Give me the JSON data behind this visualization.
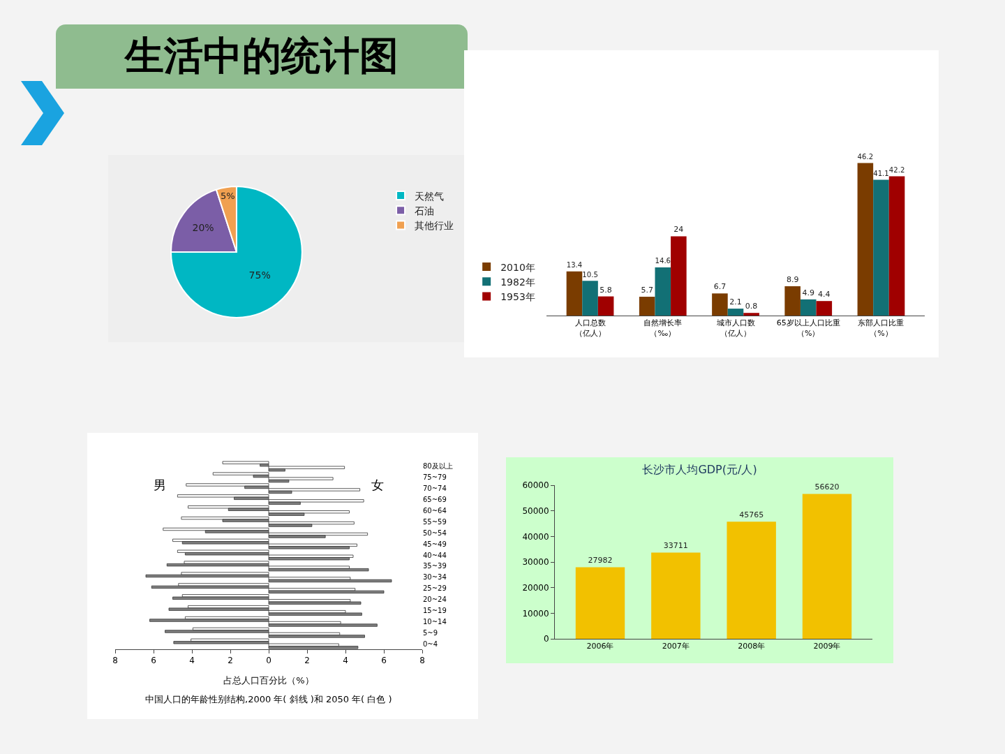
{
  "chart_data": [
    {
      "type": "pie",
      "title": "生活中的统计图",
      "categories": [
        "天然气",
        "石油",
        "其他行业"
      ],
      "values": [
        75,
        20,
        5
      ],
      "colors": [
        "#00b7c3",
        "#7b5ea7",
        "#f0a050"
      ],
      "value_labels": [
        "75%",
        "20%",
        "5%"
      ],
      "legend": "right"
    },
    {
      "type": "bar",
      "categories": [
        "人口总数（亿人）",
        "自然增长率（‰）",
        "城市人口数（亿人）",
        "65岁以上人口比重（%）",
        "东部人口比重（%）"
      ],
      "series": [
        {
          "name": "2010年",
          "color": "#7a3c00",
          "values": [
            13.4,
            5.7,
            6.7,
            8.9,
            46.2
          ]
        },
        {
          "name": "1982年",
          "color": "#127075",
          "values": [
            10.5,
            14.6,
            2.1,
            4.9,
            41.1
          ]
        },
        {
          "name": "1953年",
          "color": "#a00000",
          "values": [
            5.8,
            24.0,
            0.8,
            4.4,
            42.2
          ]
        }
      ],
      "data_labels": true,
      "tick_labels": "x",
      "legend": "left",
      "grid": false
    },
    {
      "type": "bar",
      "orientation": "horizontal",
      "categories": [
        "80及以上",
        "75~79",
        "70~74",
        "65~69",
        "60~64",
        "55~59",
        "50~54",
        "45~49",
        "40~44",
        "35~39",
        "30~34",
        "25~29",
        "20~24",
        "15~19",
        "10~14",
        "5~9",
        "0~4"
      ],
      "series": [
        {
          "color": "#ffffff",
          "values": [
            -2.4,
            -2.9,
            -4.3,
            -4.75,
            -4.2,
            -4.55,
            -5.5,
            -5.0,
            -4.75,
            -4.4,
            -4.55,
            -4.7,
            -4.5,
            -4.2,
            -4.35,
            -3.95,
            -4.05
          ]
        },
        {
          "color": "#7f7f7f",
          "values": [
            -0.45,
            -0.8,
            -1.25,
            -1.8,
            -2.1,
            -2.4,
            -3.3,
            -4.5,
            -4.35,
            -5.3,
            -6.4,
            -6.1,
            -5.0,
            -5.2,
            -6.2,
            -5.4,
            -4.95
          ]
        },
        {
          "color": "#ffffff",
          "values": [
            3.95,
            3.35,
            4.75,
            4.95,
            4.2,
            4.45,
            5.15,
            4.6,
            4.4,
            4.2,
            4.25,
            4.5,
            4.25,
            4.0,
            3.75,
            3.7,
            3.65
          ]
        },
        {
          "color": "#7f7f7f",
          "values": [
            0.85,
            1.05,
            1.2,
            1.65,
            1.85,
            2.25,
            2.95,
            4.2,
            4.2,
            5.2,
            6.4,
            6.0,
            4.8,
            4.85,
            5.65,
            5.0,
            4.65
          ]
        }
      ],
      "xlim": [
        -8,
        8
      ],
      "xticks": [
        {
          "value": -8,
          "label": "8"
        },
        {
          "value": -6,
          "label": "6"
        },
        {
          "value": -4,
          "label": "4"
        },
        {
          "value": -2,
          "label": "2"
        },
        0,
        2,
        4,
        6,
        8
      ],
      "xlabel": "占总人口百分比（%）",
      "annotations": [
        "男",
        "女",
        "中国人口的年龄性别结构,2000 年( 斜线 )和 2050 年( 白色 )"
      ],
      "grid": false
    },
    {
      "type": "bar",
      "title": "长沙市人均GDP(元/人)",
      "categories": [
        "2006年",
        "2007年",
        "2008年",
        "2009年"
      ],
      "values": [
        27982,
        33711,
        45765,
        56620
      ],
      "color": "#f2c100",
      "data_labels": true,
      "ylim": [
        0,
        60000
      ],
      "yticks": [
        0,
        10000,
        20000,
        30000,
        40000,
        50000,
        60000
      ],
      "grid": false
    }
  ]
}
